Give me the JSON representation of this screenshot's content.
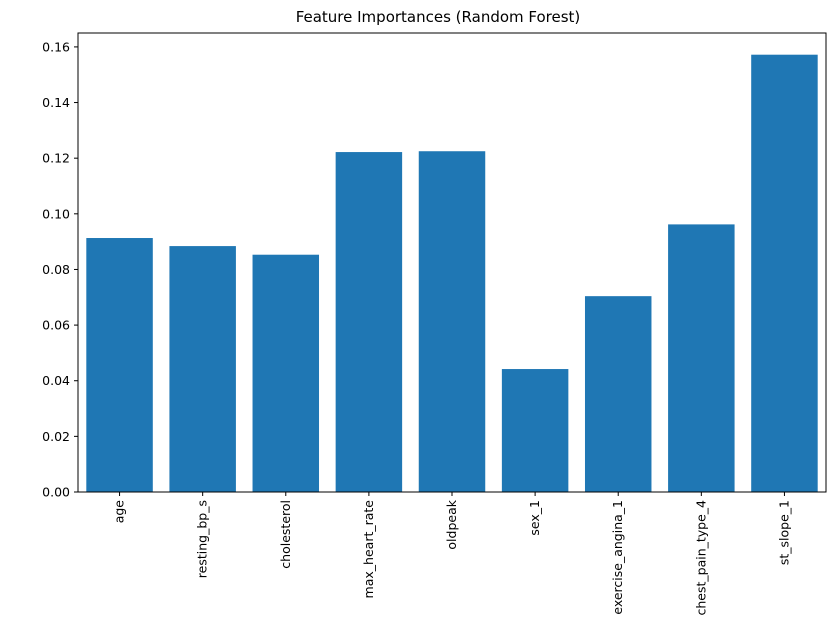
{
  "chart_data": {
    "type": "bar",
    "title": "Feature Importances (Random Forest)",
    "xlabel": "",
    "ylabel": "",
    "categories": [
      "age",
      "resting_bp_s",
      "cholesterol",
      "max_heart_rate",
      "oldpeak",
      "sex_1",
      "exercise_angina_1",
      "chest_pain_type_4",
      "st_slope_1"
    ],
    "values": [
      0.0913,
      0.0884,
      0.0853,
      0.1222,
      0.1225,
      0.0442,
      0.0704,
      0.0962,
      0.1572
    ],
    "ylim": [
      0,
      0.165
    ],
    "yticks": [
      "0.00",
      "0.02",
      "0.04",
      "0.06",
      "0.08",
      "0.10",
      "0.12",
      "0.14",
      "0.16"
    ],
    "grid": false,
    "bar_color": "#1f77b4"
  }
}
